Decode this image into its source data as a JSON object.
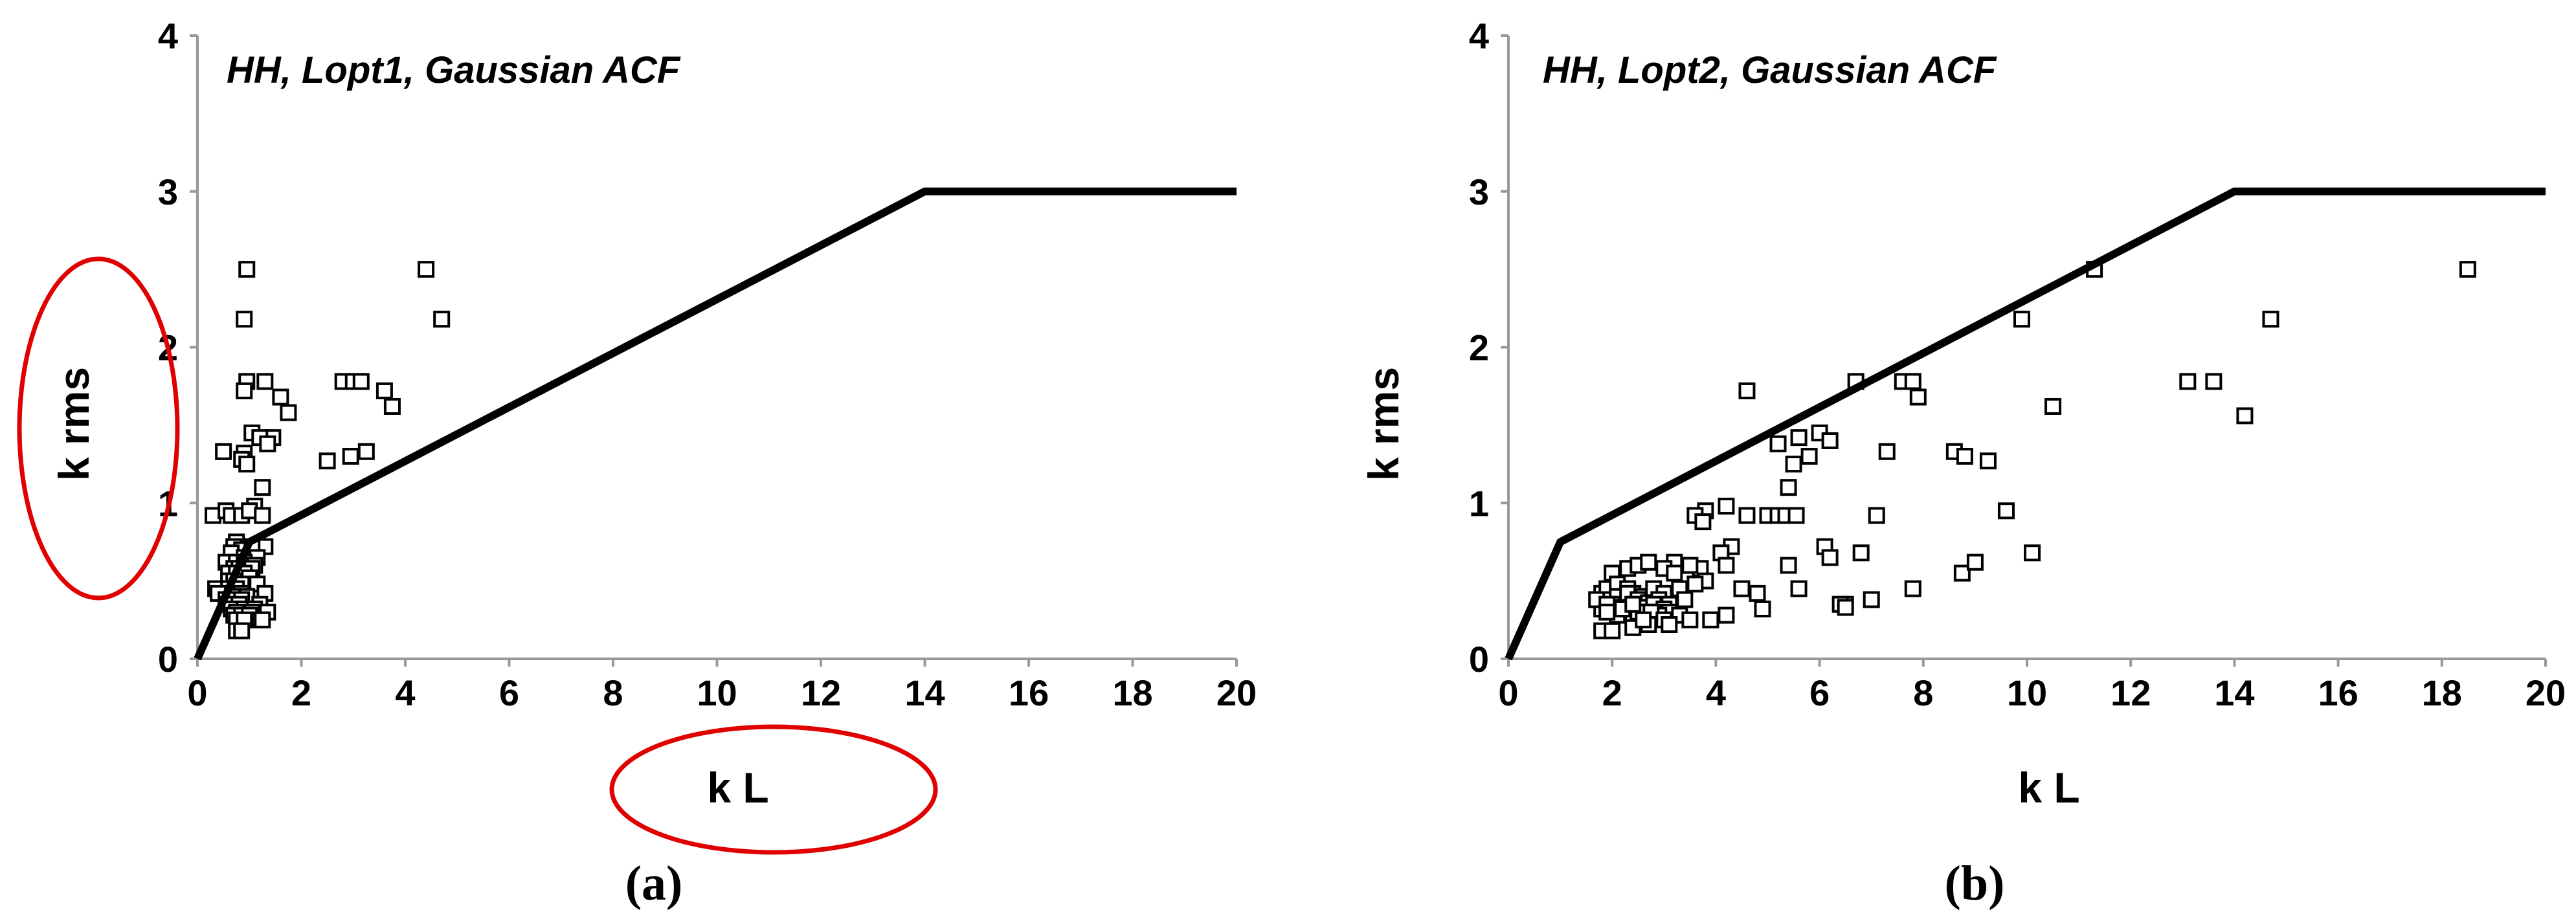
{
  "colors": {
    "marker_edge": "#000000",
    "boundary": "#000000",
    "axis": "#999999",
    "highlight": "#e00000"
  },
  "chart_data": [
    {
      "type": "scatter",
      "title": "HH, Lopt1, Gaussian ACF",
      "xlabel": "k L",
      "ylabel": "k rms",
      "caption": "(a)",
      "xlim": [
        0,
        20
      ],
      "ylim": [
        0,
        4
      ],
      "xticks": [
        "0",
        "2",
        "4",
        "6",
        "8",
        "10",
        "12",
        "14",
        "16",
        "18",
        "20"
      ],
      "yticks": [
        "0",
        "1",
        "2",
        "3",
        "4"
      ],
      "grid": false,
      "legend": "none",
      "boundary": {
        "x": [
          0,
          1.0,
          14,
          20
        ],
        "y": [
          0,
          0.75,
          3,
          3
        ]
      },
      "annotations": [
        "ellipse around y-axis label",
        "ellipse around x-axis label"
      ],
      "points": {
        "x": [
          0.95,
          0.9,
          4.4,
          4.7,
          0.95,
          0.9,
          1.3,
          1.6,
          1.75,
          1.45,
          1.05,
          1.2,
          1.35,
          0.9,
          0.85,
          0.95,
          1.25,
          1.1,
          0.5,
          0.3,
          0.55,
          0.65,
          0.85,
          1.0,
          1.25,
          1.3,
          0.75,
          0.7,
          0.85,
          1.05,
          0.65,
          0.9,
          1.15,
          0.55,
          0.75,
          0.9,
          0.95,
          1.1,
          0.7,
          0.8,
          1.05,
          0.6,
          0.75,
          0.9,
          1.0,
          0.6,
          0.7,
          0.85,
          1.15,
          0.35,
          0.6,
          0.75,
          0.85,
          1.3,
          0.7,
          0.95,
          0.4,
          0.55,
          0.7,
          0.85,
          0.6,
          0.8,
          1.2,
          0.65,
          0.9,
          1.1,
          0.75,
          1.05,
          1.35,
          0.7,
          0.85,
          1.0,
          1.2,
          0.75,
          0.9,
          1.25,
          0.75,
          0.85,
          2.5,
          2.95,
          3.05,
          3.25,
          2.8,
          3.0,
          3.15,
          3.6,
          3.75
        ],
        "y": [
          2.5,
          2.18,
          2.5,
          2.18,
          1.78,
          1.72,
          1.78,
          1.68,
          1.58,
          1.42,
          1.45,
          1.42,
          1.38,
          1.32,
          1.28,
          1.25,
          1.1,
          0.98,
          1.33,
          0.92,
          0.95,
          0.92,
          0.92,
          0.95,
          0.92,
          0.72,
          0.75,
          0.72,
          0.7,
          0.72,
          0.68,
          0.65,
          0.65,
          0.62,
          0.62,
          0.62,
          0.6,
          0.6,
          0.58,
          0.58,
          0.58,
          0.55,
          0.55,
          0.55,
          0.52,
          0.5,
          0.5,
          0.48,
          0.48,
          0.45,
          0.45,
          0.45,
          0.42,
          0.42,
          0.4,
          0.4,
          0.42,
          0.38,
          0.38,
          0.38,
          0.35,
          0.35,
          0.35,
          0.32,
          0.32,
          0.32,
          0.3,
          0.3,
          0.3,
          0.28,
          0.28,
          0.28,
          0.25,
          0.25,
          0.25,
          0.25,
          0.18,
          0.18,
          1.27,
          1.3,
          1.78,
          1.33,
          1.78,
          1.78,
          1.78,
          1.72,
          1.62
        ]
      }
    },
    {
      "type": "scatter",
      "title": "HH, Lopt2, Gaussian ACF",
      "xlabel": "k L",
      "ylabel": "k rms",
      "caption": "(b)",
      "xlim": [
        0,
        20
      ],
      "ylim": [
        0,
        4
      ],
      "xticks": [
        "0",
        "2",
        "4",
        "6",
        "8",
        "10",
        "12",
        "14",
        "16",
        "18",
        "20"
      ],
      "yticks": [
        "0",
        "1",
        "2",
        "3",
        "4"
      ],
      "grid": false,
      "legend": "none",
      "boundary": {
        "x": [
          0,
          1.0,
          14,
          20
        ],
        "y": [
          0,
          0.75,
          3,
          3
        ]
      },
      "points": {
        "x": [
          18.5,
          11.3,
          14.7,
          9.9,
          13.1,
          13.6,
          10.5,
          14.2,
          4.6,
          6.7,
          7.6,
          7.8,
          7.9,
          6.0,
          5.6,
          6.2,
          5.2,
          7.3,
          5.8,
          5.5,
          5.4,
          8.6,
          8.8,
          9.25,
          4.2,
          3.8,
          4.6,
          5.0,
          5.2,
          5.35,
          5.55,
          3.6,
          3.75,
          7.1,
          9.6,
          6.1,
          6.2,
          6.8,
          5.4,
          4.3,
          4.1,
          3.2,
          3.5,
          3.7,
          4.2,
          10.1,
          8.75,
          9.0,
          7.8,
          5.6,
          4.5,
          4.8,
          6.5,
          7.0,
          4.9,
          3.9,
          4.2,
          3.8,
          2.0,
          2.3,
          2.5,
          2.7,
          3.0,
          3.2,
          3.5,
          1.8,
          1.9,
          2.1,
          2.3,
          2.4,
          2.6,
          2.8,
          3.0,
          3.3,
          3.6,
          1.9,
          2.1,
          2.3,
          2.5,
          2.7,
          2.9,
          3.1,
          3.4,
          2.0,
          2.2,
          2.4,
          2.6,
          2.8,
          3.0,
          2.2,
          2.5,
          2.8,
          3.1,
          1.8,
          2.1,
          2.4,
          2.6,
          2.9,
          1.7,
          1.9,
          2.2,
          2.5,
          2.75,
          3.0,
          3.3,
          1.8,
          2.0,
          2.4,
          2.7,
          3.5,
          3.9,
          3.1,
          2.6,
          1.9,
          2.4,
          6.4,
          6.5
        ],
        "y": [
          2.5,
          2.5,
          2.18,
          2.18,
          1.78,
          1.78,
          1.62,
          1.56,
          1.72,
          1.78,
          1.78,
          1.78,
          1.68,
          1.45,
          1.42,
          1.4,
          1.38,
          1.33,
          1.3,
          1.25,
          1.1,
          1.33,
          1.3,
          1.27,
          0.98,
          0.95,
          0.92,
          0.92,
          0.92,
          0.92,
          0.92,
          0.92,
          0.88,
          0.92,
          0.95,
          0.72,
          0.65,
          0.68,
          0.6,
          0.72,
          0.68,
          0.62,
          0.6,
          0.58,
          0.6,
          0.68,
          0.55,
          0.62,
          0.45,
          0.45,
          0.45,
          0.42,
          0.35,
          0.38,
          0.32,
          0.25,
          0.28,
          0.5,
          0.55,
          0.58,
          0.6,
          0.62,
          0.58,
          0.55,
          0.6,
          0.42,
          0.45,
          0.48,
          0.45,
          0.42,
          0.4,
          0.45,
          0.42,
          0.45,
          0.48,
          0.38,
          0.4,
          0.42,
          0.38,
          0.36,
          0.38,
          0.35,
          0.38,
          0.35,
          0.33,
          0.35,
          0.33,
          0.35,
          0.32,
          0.3,
          0.3,
          0.3,
          0.3,
          0.32,
          0.28,
          0.28,
          0.28,
          0.28,
          0.38,
          0.35,
          0.32,
          0.3,
          0.3,
          0.25,
          0.28,
          0.18,
          0.18,
          0.2,
          0.22,
          0.25,
          0.25,
          0.22,
          0.25,
          0.3,
          0.35,
          0.35,
          0.33
        ]
      }
    }
  ]
}
